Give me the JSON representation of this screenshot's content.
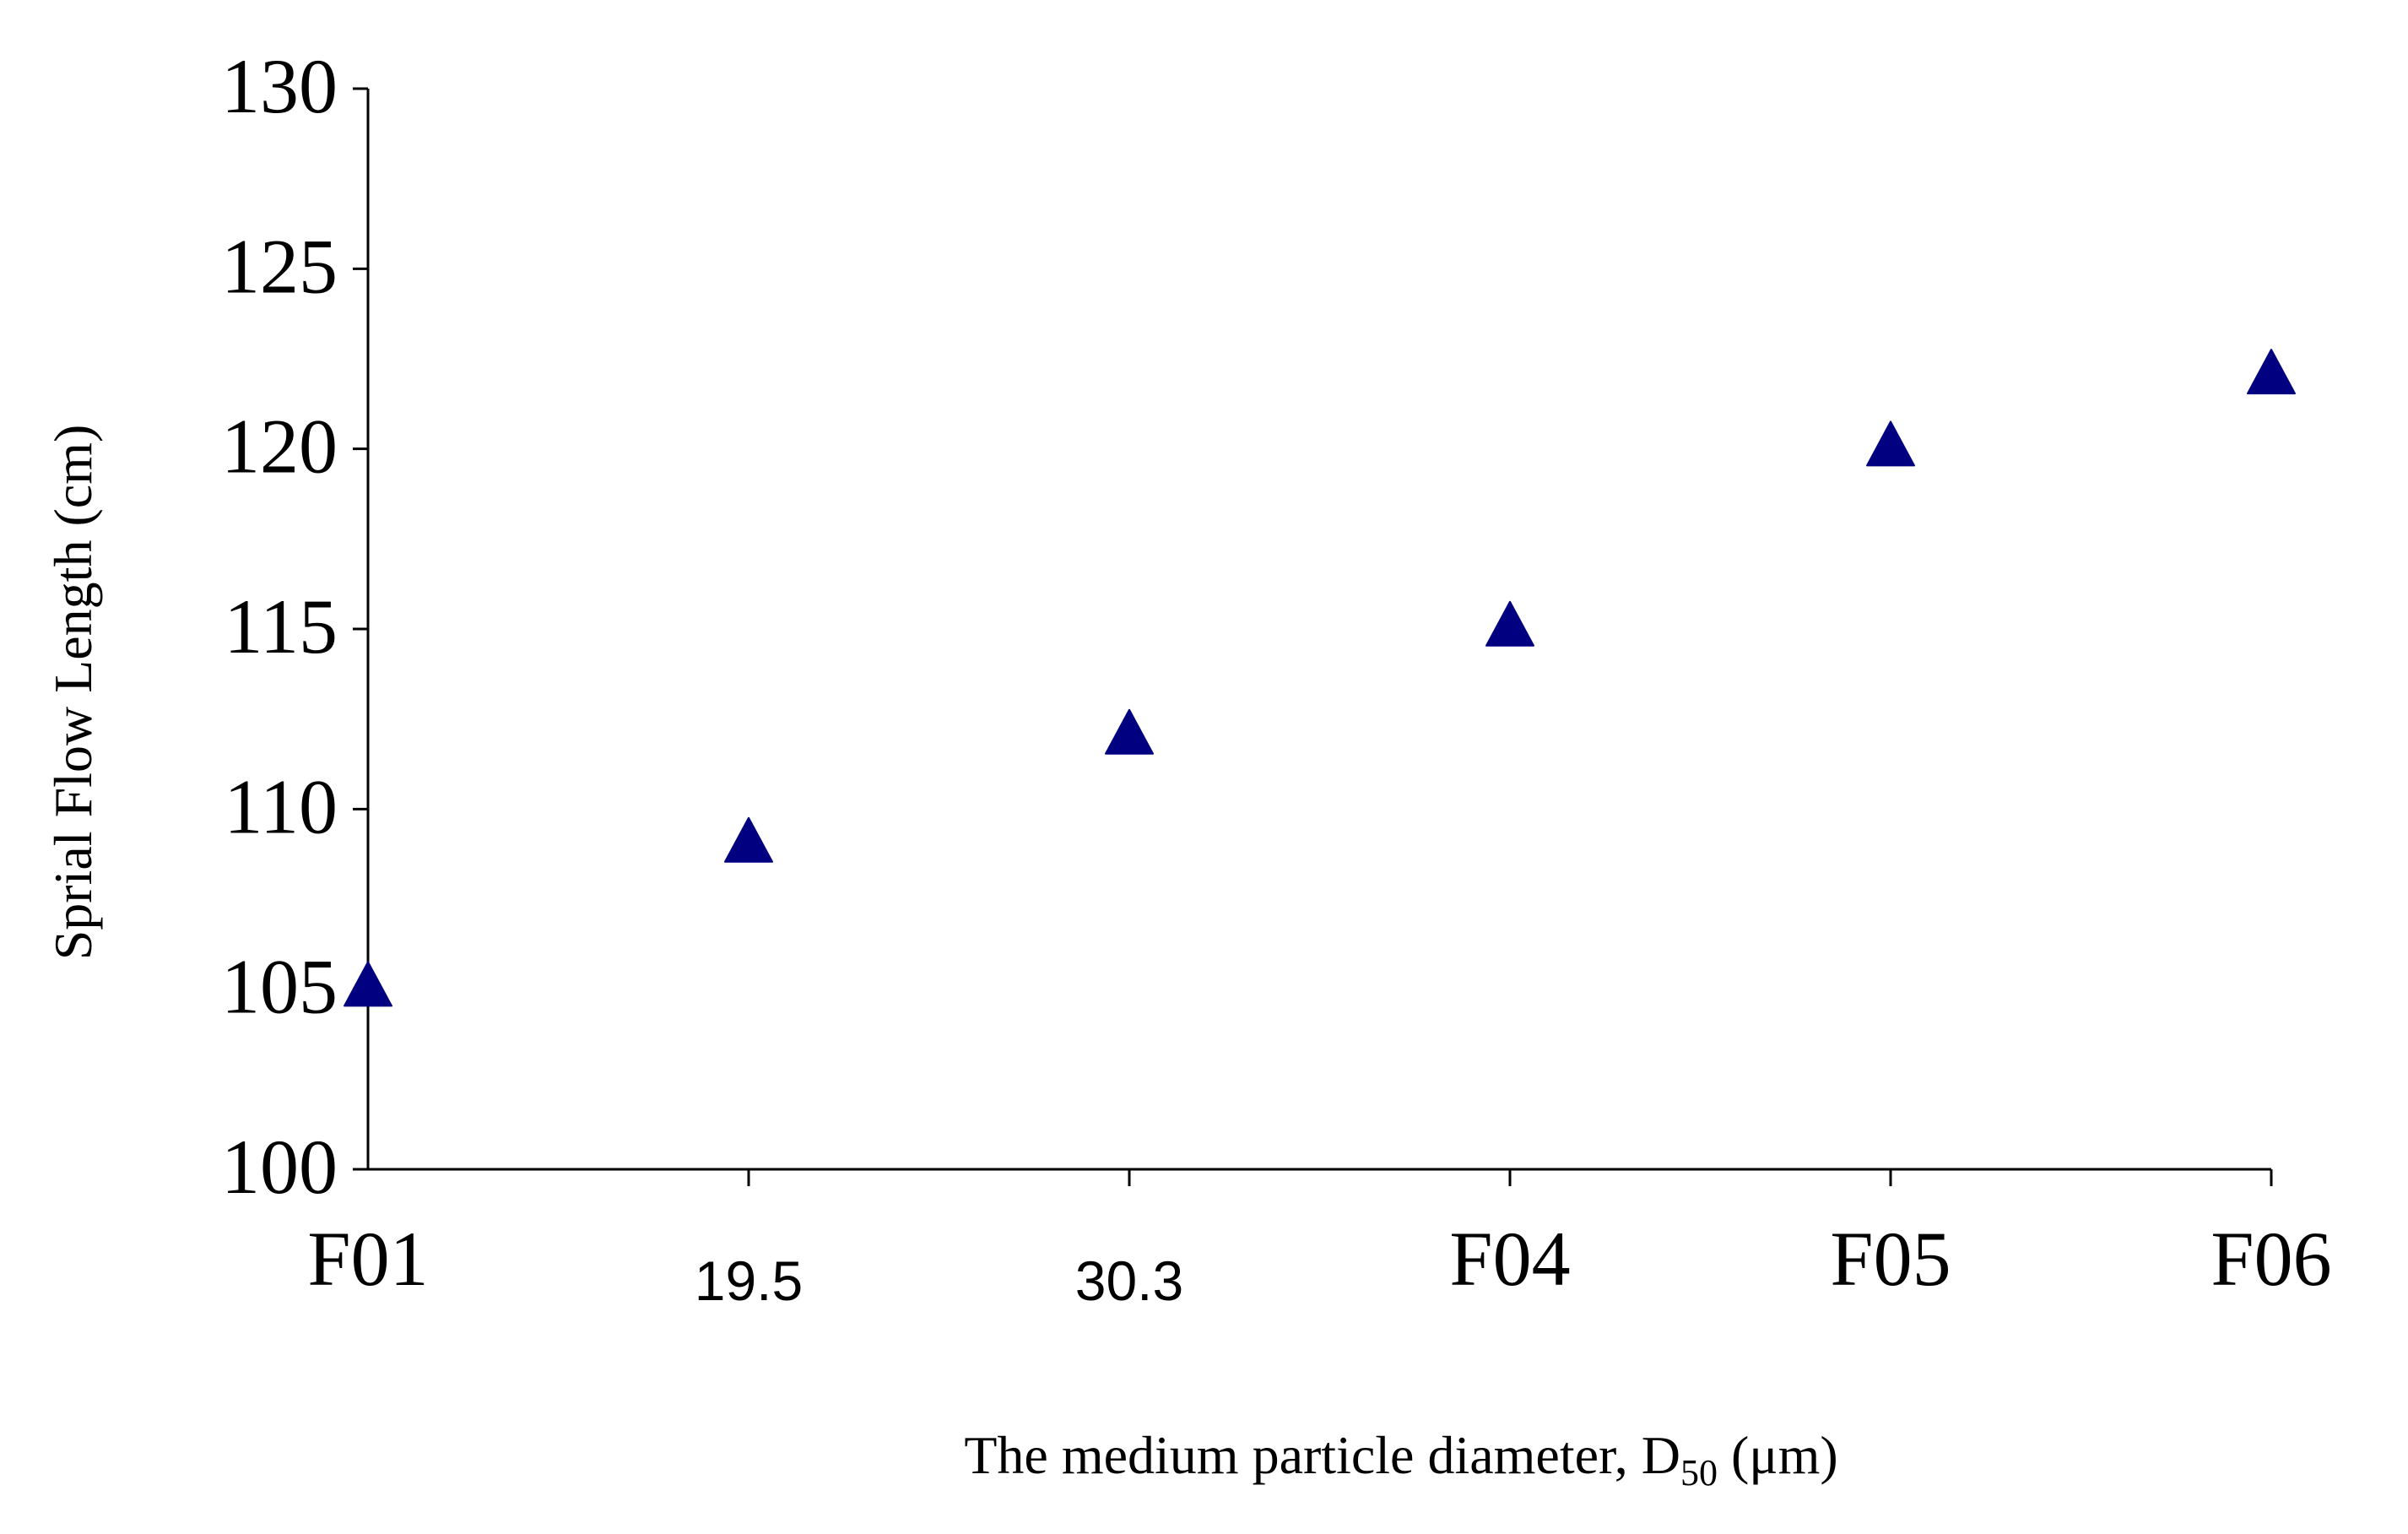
{
  "chart_data": {
    "type": "scatter",
    "categories": [
      "F01",
      "19.5",
      "30.3",
      "F04",
      "F05",
      "F06"
    ],
    "series": [
      {
        "values": [
          105,
          109,
          112,
          115,
          120,
          122
        ],
        "marker": "triangle",
        "color": "#000080"
      }
    ],
    "xlabel": {
      "main": "The medium particle diameter, D",
      "subscript": "50",
      "tail": " (μm)"
    },
    "ylabel": "Sprial Flow Length (cm)",
    "ylim": [
      100,
      130
    ],
    "yticks": [
      100,
      105,
      110,
      115,
      120,
      125,
      130
    ],
    "grid": false
  }
}
